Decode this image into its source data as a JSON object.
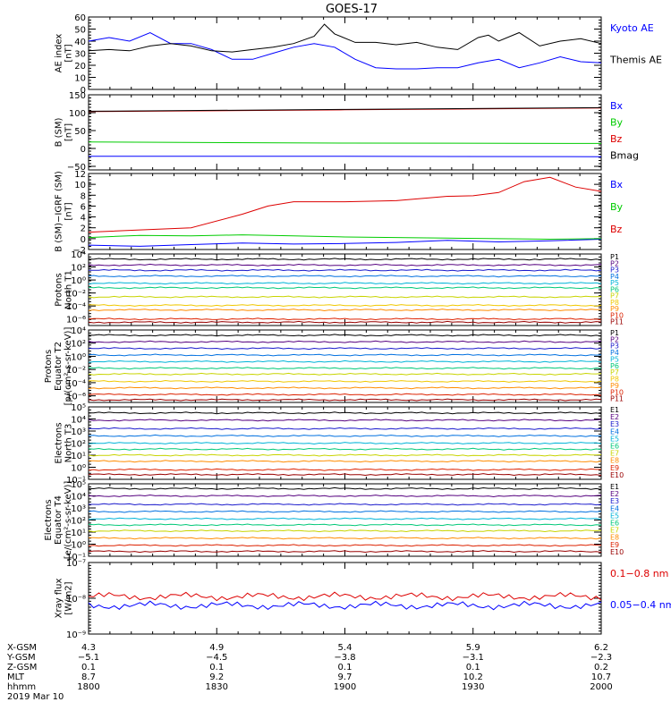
{
  "title": "GOES-17",
  "chart_data": [
    {
      "type": "line",
      "ylabel": [
        "AE index",
        "[nT]"
      ],
      "ylim": [
        0,
        60
      ],
      "yticks": [
        {
          "v": 0,
          "t": "0"
        },
        {
          "v": 10,
          "t": "10"
        },
        {
          "v": 20,
          "t": "20"
        },
        {
          "v": 30,
          "t": "30"
        },
        {
          "v": 40,
          "t": "40"
        },
        {
          "v": 50,
          "t": "50"
        },
        {
          "v": 60,
          "t": "60"
        }
      ],
      "series": [
        {
          "name": "Kyoto AE",
          "color": "#0000ff",
          "x": [
            0,
            0.04,
            0.08,
            0.12,
            0.16,
            0.2,
            0.24,
            0.28,
            0.32,
            0.36,
            0.4,
            0.44,
            0.48,
            0.52,
            0.56,
            0.6,
            0.64,
            0.68,
            0.72,
            0.76,
            0.8,
            0.84,
            0.88,
            0.92,
            0.96,
            1.0
          ],
          "y": [
            40,
            43,
            40,
            47,
            38,
            38,
            33,
            25,
            25,
            30,
            35,
            38,
            35,
            25,
            18,
            17,
            17,
            18,
            18,
            22,
            25,
            18,
            22,
            27,
            23,
            22
          ]
        },
        {
          "name": "Themis AE",
          "color": "#000000",
          "x": [
            0,
            0.04,
            0.08,
            0.12,
            0.16,
            0.2,
            0.24,
            0.28,
            0.32,
            0.36,
            0.4,
            0.44,
            0.46,
            0.48,
            0.52,
            0.56,
            0.6,
            0.64,
            0.68,
            0.72,
            0.76,
            0.78,
            0.8,
            0.84,
            0.88,
            0.92,
            0.96,
            1.0
          ],
          "y": [
            32,
            33,
            32,
            36,
            38,
            36,
            32,
            31,
            33,
            35,
            38,
            44,
            54,
            46,
            39,
            39,
            37,
            39,
            35,
            33,
            43,
            45,
            40,
            47,
            36,
            40,
            42,
            38
          ]
        }
      ]
    },
    {
      "type": "line",
      "ylabel": [
        "B (SM)",
        "[nT]"
      ],
      "ylim": [
        -60,
        150
      ],
      "yticks": [
        {
          "v": -50,
          "t": "−50"
        },
        {
          "v": 0,
          "t": "0"
        },
        {
          "v": 50,
          "t": "50"
        },
        {
          "v": 100,
          "t": "100"
        },
        {
          "v": 150,
          "t": "150"
        }
      ],
      "series": [
        {
          "name": "Bx",
          "color": "#0000ff",
          "x": [
            0,
            0.5,
            1
          ],
          "y": [
            -22,
            -22,
            -23
          ]
        },
        {
          "name": "By",
          "color": "#00cc00",
          "x": [
            0,
            0.5,
            1
          ],
          "y": [
            18,
            15,
            14
          ]
        },
        {
          "name": "Bz",
          "color": "#dd0000",
          "x": [
            0,
            0.5,
            1
          ],
          "y": [
            103,
            108,
            113
          ]
        },
        {
          "name": "Bmag",
          "color": "#000000",
          "x": [
            0,
            0.5,
            1
          ],
          "y": [
            104,
            109,
            114
          ]
        }
      ]
    },
    {
      "type": "line",
      "ylabel": [
        "B (SM)−IGRF (SM)",
        "[nT]"
      ],
      "ylim": [
        -2,
        12
      ],
      "yticks": [
        {
          "v": -2,
          "t": "−2"
        },
        {
          "v": 0,
          "t": "0"
        },
        {
          "v": 2,
          "t": "2"
        },
        {
          "v": 4,
          "t": "4"
        },
        {
          "v": 6,
          "t": "6"
        },
        {
          "v": 8,
          "t": "8"
        },
        {
          "v": 10,
          "t": "10"
        },
        {
          "v": 12,
          "t": "12"
        }
      ],
      "series": [
        {
          "name": "Bx",
          "color": "#0000ff",
          "x": [
            0,
            0.1,
            0.2,
            0.3,
            0.4,
            0.5,
            0.6,
            0.7,
            0.8,
            0.9,
            1
          ],
          "y": [
            -1.2,
            -1.4,
            -1.1,
            -0.8,
            -1.0,
            -0.9,
            -0.7,
            -0.3,
            -0.6,
            -0.4,
            -0.1
          ]
        },
        {
          "name": "By",
          "color": "#00cc00",
          "x": [
            0,
            0.1,
            0.2,
            0.3,
            0.4,
            0.5,
            0.6,
            0.7,
            0.8,
            0.9,
            1
          ],
          "y": [
            0.2,
            0.6,
            0.5,
            0.7,
            0.5,
            0.3,
            0.2,
            0.1,
            0.0,
            -0.1,
            0.0
          ]
        },
        {
          "name": "Bz",
          "color": "#dd0000",
          "x": [
            0,
            0.1,
            0.2,
            0.3,
            0.35,
            0.4,
            0.5,
            0.6,
            0.7,
            0.75,
            0.8,
            0.85,
            0.9,
            0.95,
            1
          ],
          "y": [
            1.2,
            1.6,
            2.0,
            4.5,
            6.0,
            6.8,
            6.8,
            7.0,
            7.8,
            7.9,
            8.5,
            10.5,
            11.3,
            9.5,
            8.7
          ]
        }
      ]
    },
    {
      "type": "line",
      "log": true,
      "ylabel": [
        "Protons",
        "North T1"
      ],
      "ylim": [
        -7,
        4
      ],
      "yticks": [
        {
          "v": 4,
          "t": "10⁴"
        },
        {
          "v": 2,
          "t": "10²"
        },
        {
          "v": 0,
          "t": "10⁰"
        },
        {
          "v": -2,
          "t": "10⁻²"
        },
        {
          "v": -4,
          "t": "10⁻⁴"
        },
        {
          "v": -6,
          "t": "10⁻⁶"
        }
      ],
      "series": [
        {
          "name": "P1",
          "color": "#000000",
          "level": 3.2
        },
        {
          "name": "P2",
          "color": "#55007f",
          "level": 2.3
        },
        {
          "name": "P3",
          "color": "#1a1acc",
          "level": 1.5
        },
        {
          "name": "P4",
          "color": "#0070e0",
          "level": 0.6
        },
        {
          "name": "P5",
          "color": "#00b4d8",
          "level": -0.5
        },
        {
          "name": "P6",
          "color": "#00c878",
          "level": -1.2
        },
        {
          "name": "P7",
          "color": "#c8d400",
          "level": -2.6
        },
        {
          "name": "P8",
          "color": "#f0c800",
          "level": -3.9
        },
        {
          "name": "P9",
          "color": "#ff8c00",
          "level": -4.6
        },
        {
          "name": "P10",
          "color": "#dd2200",
          "level": -6.0
        },
        {
          "name": "P11",
          "color": "#990000",
          "level": -6.5
        }
      ]
    },
    {
      "type": "line",
      "log": true,
      "ylabel": [
        "Protons",
        "Equator T2",
        "[p/(cm²-s-sr-keV)]"
      ],
      "ylim": [
        -7,
        4
      ],
      "yticks": [
        {
          "v": 4,
          "t": "10⁴"
        },
        {
          "v": 2,
          "t": "10²"
        },
        {
          "v": 0,
          "t": "10⁰"
        },
        {
          "v": -2,
          "t": "10⁻²"
        },
        {
          "v": -4,
          "t": "10⁻⁴"
        },
        {
          "v": -6,
          "t": "10⁻⁶"
        }
      ],
      "series": [
        {
          "name": "P1",
          "color": "#000000",
          "level": 3.2
        },
        {
          "name": "P2",
          "color": "#55007f",
          "level": 2.2
        },
        {
          "name": "P3",
          "color": "#1a1acc",
          "level": 1.2
        },
        {
          "name": "P4",
          "color": "#0070e0",
          "level": 0.2
        },
        {
          "name": "P5",
          "color": "#00b4d8",
          "level": -0.8
        },
        {
          "name": "P6",
          "color": "#00c878",
          "level": -1.8
        },
        {
          "name": "P7",
          "color": "#c8d400",
          "level": -2.7
        },
        {
          "name": "P8",
          "color": "#f0c800",
          "level": -3.8
        },
        {
          "name": "P9",
          "color": "#ff8c00",
          "level": -4.8
        },
        {
          "name": "P10",
          "color": "#dd2200",
          "level": -5.8
        },
        {
          "name": "P11",
          "color": "#990000",
          "level": -6.6
        }
      ]
    },
    {
      "type": "line",
      "log": true,
      "ylabel": [
        "Electrons",
        "North T3"
      ],
      "ylim": [
        -1,
        5
      ],
      "yticks": [
        {
          "v": 5,
          "t": "10⁵"
        },
        {
          "v": 4,
          "t": "10⁴"
        },
        {
          "v": 3,
          "t": "10³"
        },
        {
          "v": 2,
          "t": "10²"
        },
        {
          "v": 1,
          "t": "10¹"
        },
        {
          "v": 0,
          "t": "10⁰"
        },
        {
          "v": -1,
          "t": "10⁻¹"
        }
      ],
      "series": [
        {
          "name": "E1",
          "color": "#000000",
          "level": 4.5
        },
        {
          "name": "E2",
          "color": "#55007f",
          "level": 3.9
        },
        {
          "name": "E3",
          "color": "#1a1acc",
          "level": 3.2
        },
        {
          "name": "E4",
          "color": "#0070e0",
          "level": 2.6
        },
        {
          "name": "E5",
          "color": "#00b4d8",
          "level": 2.0
        },
        {
          "name": "E6",
          "color": "#00c878",
          "level": 1.5
        },
        {
          "name": "E7",
          "color": "#c8d400",
          "level": 1.0
        },
        {
          "name": "E8",
          "color": "#ff8c00",
          "level": 0.5
        },
        {
          "name": "E9",
          "color": "#dd2200",
          "level": -0.2
        },
        {
          "name": "E10",
          "color": "#990000",
          "level": -0.6
        }
      ]
    },
    {
      "type": "line",
      "log": true,
      "ylabel": [
        "Electrons",
        "Equator T4",
        "[e/(cm²-s-sr-keV)]"
      ],
      "ylim": [
        -1,
        5
      ],
      "yticks": [
        {
          "v": 5,
          "t": "10⁵"
        },
        {
          "v": 4,
          "t": "10⁴"
        },
        {
          "v": 3,
          "t": "10³"
        },
        {
          "v": 2,
          "t": "10²"
        },
        {
          "v": 1,
          "t": "10¹"
        },
        {
          "v": 0,
          "t": "10⁰"
        },
        {
          "v": -1,
          "t": "10⁻¹"
        }
      ],
      "series": [
        {
          "name": "E1",
          "color": "#000000",
          "level": 4.6
        },
        {
          "name": "E2",
          "color": "#55007f",
          "level": 4.0
        },
        {
          "name": "E3",
          "color": "#1a1acc",
          "level": 3.3
        },
        {
          "name": "E4",
          "color": "#0070e0",
          "level": 2.7
        },
        {
          "name": "E5",
          "color": "#00b4d8",
          "level": 2.1
        },
        {
          "name": "E6",
          "color": "#00c878",
          "level": 1.6
        },
        {
          "name": "E7",
          "color": "#c8d400",
          "level": 1.1
        },
        {
          "name": "E8",
          "color": "#ff8c00",
          "level": 0.5
        },
        {
          "name": "E9",
          "color": "#dd2200",
          "level": -0.1
        },
        {
          "name": "E10",
          "color": "#990000",
          "level": -0.6
        }
      ]
    },
    {
      "type": "line",
      "log": true,
      "ylabel": [
        "Xray flux",
        "[W/m2]"
      ],
      "ylim": [
        -9,
        -7
      ],
      "yticks": [
        {
          "v": -7,
          "t": "10⁻⁷"
        },
        {
          "v": -8,
          "t": "10⁻⁸"
        },
        {
          "v": -9,
          "t": "10⁻⁹"
        }
      ],
      "series": [
        {
          "name": "0.1−0.8 nm",
          "color": "#dd0000",
          "level": -7.95
        },
        {
          "name": "0.05−0.4 nm",
          "color": "#0000ff",
          "level": -8.2
        }
      ]
    }
  ],
  "xaxis": {
    "ticks": [
      "4.3",
      "4.9",
      "5.4",
      "5.9",
      "6.2"
    ],
    "rows": [
      {
        "label": "X-GSM",
        "values": [
          "4.3",
          "4.9",
          "5.4",
          "5.9",
          "6.2"
        ]
      },
      {
        "label": "Y-GSM",
        "values": [
          "−5.1",
          "−4.5",
          "−3.8",
          "−3.1",
          "−2.3"
        ]
      },
      {
        "label": "Z-GSM",
        "values": [
          "0.1",
          "0.1",
          "0.1",
          "0.1",
          "0.2"
        ]
      },
      {
        "label": "MLT",
        "values": [
          "8.7",
          "9.2",
          "9.7",
          "10.2",
          "10.7"
        ]
      },
      {
        "label": "hhmm",
        "values": [
          "1800",
          "1830",
          "1900",
          "1930",
          "2000"
        ]
      }
    ],
    "date": "2019 Mar 10"
  }
}
